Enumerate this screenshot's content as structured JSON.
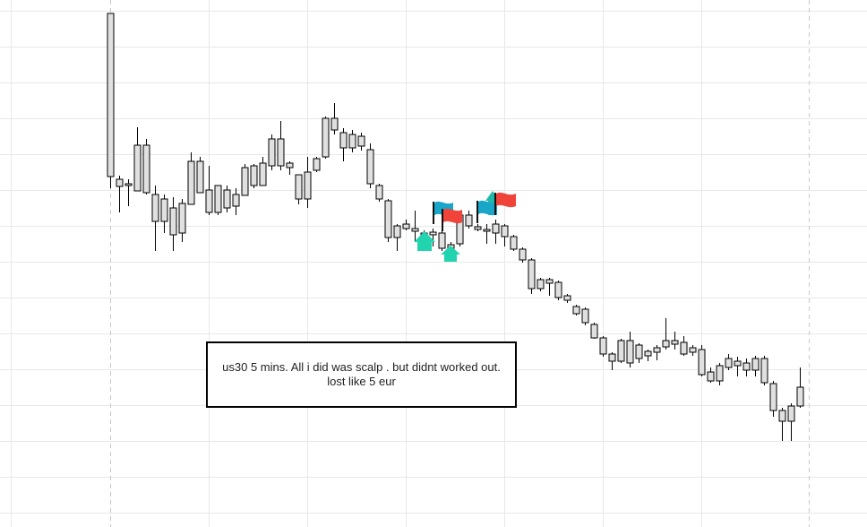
{
  "chart_data": {
    "type": "candlestick",
    "annotation": "us30 5 mins. All i did was scalp . but didnt worked out. lost like 5 eur",
    "color": "#e0e0e0",
    "ylim": [
      0,
      588
    ],
    "open": [
      573,
      388,
      383,
      426,
      426,
      371,
      366,
      356,
      361,
      408,
      408,
      376,
      381,
      376,
      371,
      401,
      403,
      406,
      433,
      433,
      406,
      393,
      396,
      411,
      456,
      456,
      440,
      438,
      436,
      421,
      381,
      364,
      336,
      338,
      333,
      328,
      329,
      328,
      315,
      348,
      348,
      335,
      332,
      338,
      336,
      324,
      310,
      298,
      276,
      276,
      273,
      258,
      246,
      243,
      226,
      211,
      193,
      208,
      208,
      203,
      196,
      200,
      208,
      208,
      206,
      200,
      198,
      173,
      180,
      188,
      185,
      183,
      188,
      188,
      160,
      130,
      135,
      156
    ],
    "high": [
      573,
      392,
      388,
      446,
      433,
      381,
      371,
      368,
      366,
      418,
      413,
      403,
      381,
      381,
      378,
      405,
      405,
      413,
      438,
      453,
      408,
      393,
      413,
      413,
      458,
      473,
      445,
      443,
      440,
      428,
      383,
      366,
      338,
      343,
      353,
      331,
      333,
      343,
      318,
      348,
      353,
      338,
      338,
      343,
      338,
      326,
      312,
      300,
      278,
      278,
      275,
      260,
      248,
      245,
      228,
      213,
      195,
      210,
      218,
      205,
      198,
      203,
      233,
      218,
      213,
      203,
      203,
      178,
      183,
      193,
      190,
      188,
      191,
      191,
      163,
      133,
      138,
      178
    ],
    "low": [
      378,
      351,
      358,
      375,
      371,
      308,
      328,
      308,
      318,
      360,
      373,
      348,
      348,
      351,
      348,
      370,
      378,
      381,
      398,
      398,
      393,
      360,
      356,
      396,
      411,
      438,
      408,
      418,
      420,
      378,
      363,
      318,
      308,
      331,
      318,
      318,
      313,
      308,
      308,
      313,
      333,
      330,
      316,
      316,
      313,
      308,
      295,
      260,
      263,
      258,
      253,
      250,
      236,
      225,
      210,
      190,
      175,
      183,
      178,
      183,
      185,
      186,
      198,
      198,
      191,
      191,
      168,
      161,
      158,
      175,
      168,
      168,
      168,
      158,
      123,
      96,
      96,
      133
    ],
    "close": [
      391,
      380,
      381,
      375,
      373,
      341,
      341,
      326,
      328,
      360,
      373,
      351,
      351,
      356,
      358,
      370,
      381,
      381,
      403,
      403,
      401,
      366,
      366,
      398,
      413,
      443,
      423,
      423,
      425,
      383,
      366,
      323,
      323,
      333,
      330,
      326,
      326,
      311,
      311,
      316,
      336,
      332,
      330,
      328,
      324,
      310,
      298,
      266,
      266,
      272,
      256,
      253,
      238,
      228,
      211,
      193,
      185,
      185,
      183,
      188,
      191,
      195,
      201,
      204,
      193,
      195,
      170,
      163,
      163,
      178,
      180,
      175,
      175,
      161,
      130,
      118,
      118,
      135
    ]
  }
}
